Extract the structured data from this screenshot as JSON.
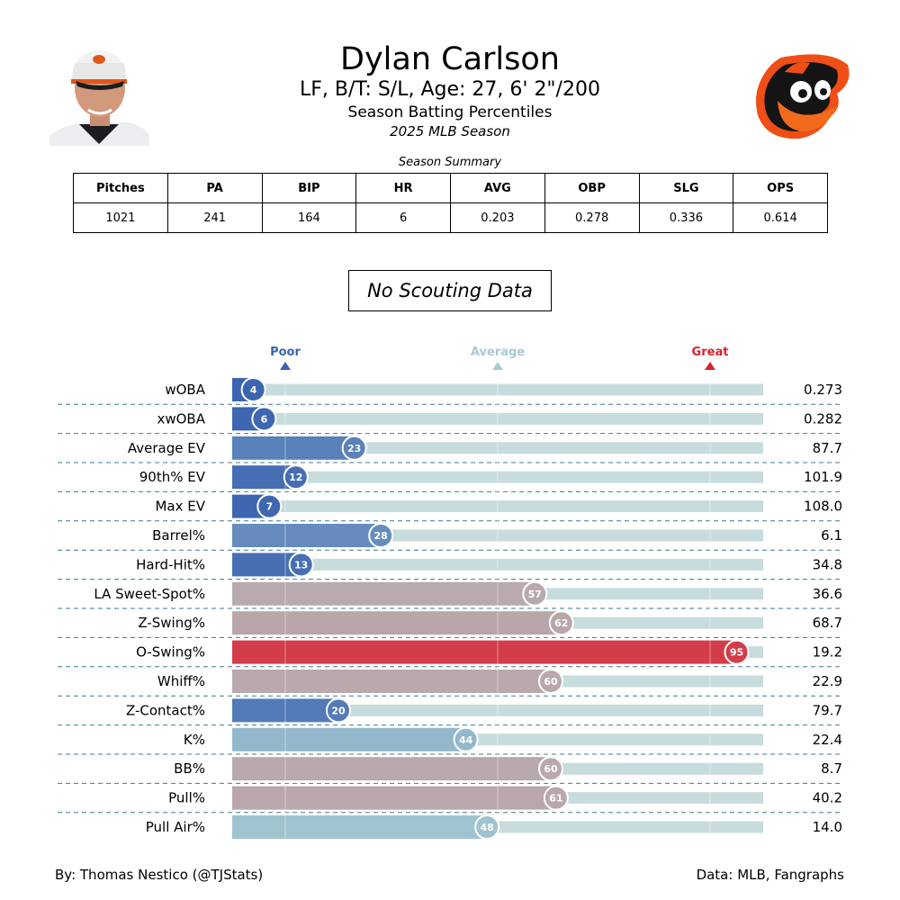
{
  "header": {
    "name": "Dylan Carlson",
    "info": "LF, B/T: S/L, Age: 27, 6' 2\"/200",
    "subtitle": "Season Batting Percentiles",
    "season": "2025 MLB Season"
  },
  "summary": {
    "caption": "Season Summary",
    "headers": [
      "Pitches",
      "PA",
      "BIP",
      "HR",
      "AVG",
      "OBP",
      "SLG",
      "OPS"
    ],
    "values": [
      "1021",
      "241",
      "164",
      "6",
      "0.203",
      "0.278",
      "0.336",
      "0.614"
    ]
  },
  "scouting": "No Scouting Data",
  "footer": {
    "left": "By: Thomas Nestico (@TJStats)",
    "right": "Data: MLB, Fangraphs"
  },
  "colors": {
    "poor": "#3a63b0",
    "average": "#a7cbd1",
    "great": "#d9202e",
    "track": "#c7dcdd"
  },
  "chart_data": {
    "type": "bar",
    "orientation": "horizontal",
    "xlim": [
      0,
      100
    ],
    "markers": [
      {
        "label": "Poor",
        "value": 10
      },
      {
        "label": "Average",
        "value": 50
      },
      {
        "label": "Great",
        "value": 90
      }
    ],
    "categories": [
      "wOBA",
      "xwOBA",
      "Average EV",
      "90th% EV",
      "Max EV",
      "Barrel%",
      "Hard-Hit%",
      "LA Sweet-Spot%",
      "Z-Swing%",
      "O-Swing%",
      "Whiff%",
      "Z-Contact%",
      "K%",
      "BB%",
      "Pull%",
      "Pull Air%"
    ],
    "percentiles": [
      4,
      6,
      23,
      12,
      7,
      28,
      13,
      57,
      62,
      95,
      60,
      20,
      44,
      60,
      61,
      48
    ],
    "stat_values": [
      "0.273",
      "0.282",
      "87.7",
      "101.9",
      "108.0",
      "6.1",
      "34.8",
      "36.6",
      "68.7",
      "19.2",
      "22.9",
      "79.7",
      "22.4",
      "8.7",
      "40.2",
      "14.0"
    ]
  }
}
